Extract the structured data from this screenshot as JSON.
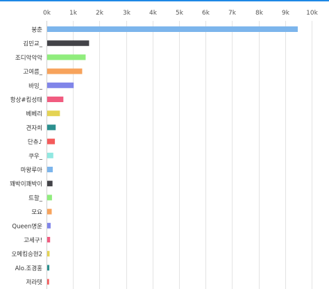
{
  "colors": {
    "top_bar": "#1e88e5",
    "grid": "#e3e3e3",
    "axis": "#cfcfcf",
    "tick_text": "#555555",
    "label_text": "#333333"
  },
  "chart_data": {
    "type": "bar",
    "orientation": "horizontal",
    "title": "",
    "xlabel": "",
    "ylabel": "",
    "xlim": [
      0,
      10000
    ],
    "x_ticks": [
      0,
      1000,
      2000,
      3000,
      4000,
      5000,
      6000,
      7000,
      8000,
      9000,
      10000
    ],
    "x_tick_labels": [
      "0k",
      "1k",
      "2k",
      "3k",
      "4k",
      "5k",
      "6k",
      "7k",
      "8k",
      "9k",
      "10k"
    ],
    "x_axis_position": "top",
    "grid": true,
    "legend": "none",
    "categories": [
      "붕춘",
      "김민교_",
      "조디악악악",
      "고여름_",
      "바밍_",
      "항상#킴성태",
      "베베리",
      "견자희",
      "단츄♪",
      "쿠우_",
      "마왕루아",
      "꽤박이꽤박이",
      "트할_",
      "모요",
      "Queen명운",
      "고세구!",
      "오메킴승현2",
      "Alo.조경홍",
      "저라텟"
    ],
    "values": [
      9450,
      1580,
      1450,
      1320,
      1000,
      610,
      480,
      320,
      290,
      230,
      210,
      200,
      180,
      170,
      130,
      110,
      90,
      80,
      70
    ],
    "bar_colors": [
      "#7cb5ec",
      "#434348",
      "#90ed7d",
      "#f7a35c",
      "#8085e9",
      "#f15c80",
      "#e4d354",
      "#2b908f",
      "#f45b5b",
      "#91e8e1",
      "#7cb5ec",
      "#434348",
      "#90ed7d",
      "#f7a35c",
      "#8085e9",
      "#f15c80",
      "#e4d354",
      "#2b908f",
      "#f45b5b"
    ]
  }
}
